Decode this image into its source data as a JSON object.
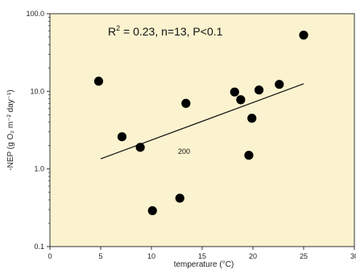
{
  "chart_data": {
    "type": "scatter",
    "xlabel": "temperature (°C)",
    "ylabel": "-NEP (g O₂ m⁻² day⁻¹)",
    "xlim": [
      0,
      30
    ],
    "ylim": [
      0.1,
      100
    ],
    "y_scale": "log",
    "x_ticks": [
      "0",
      "5",
      "10",
      "15",
      "20",
      "25",
      "30"
    ],
    "y_ticks": [
      "0.1",
      "1.0",
      "10.0",
      "100.0"
    ],
    "grid": false,
    "background": "#fbf3cf",
    "point_color": "#000000",
    "annotation": "R² = 0.23, n=13, P<0.1",
    "inline_label": "200",
    "points": [
      {
        "x": 4.8,
        "y": 13.5
      },
      {
        "x": 7.1,
        "y": 2.6
      },
      {
        "x": 8.9,
        "y": 1.9
      },
      {
        "x": 10.1,
        "y": 0.29
      },
      {
        "x": 12.8,
        "y": 0.42
      },
      {
        "x": 13.4,
        "y": 7.0
      },
      {
        "x": 18.2,
        "y": 9.8
      },
      {
        "x": 18.8,
        "y": 7.8
      },
      {
        "x": 19.6,
        "y": 1.5
      },
      {
        "x": 19.9,
        "y": 4.5
      },
      {
        "x": 20.6,
        "y": 10.4
      },
      {
        "x": 22.6,
        "y": 12.3
      },
      {
        "x": 25.0,
        "y": 53.0
      }
    ],
    "fit_line": {
      "x": [
        5,
        25
      ],
      "y": [
        1.35,
        12.5
      ]
    }
  }
}
